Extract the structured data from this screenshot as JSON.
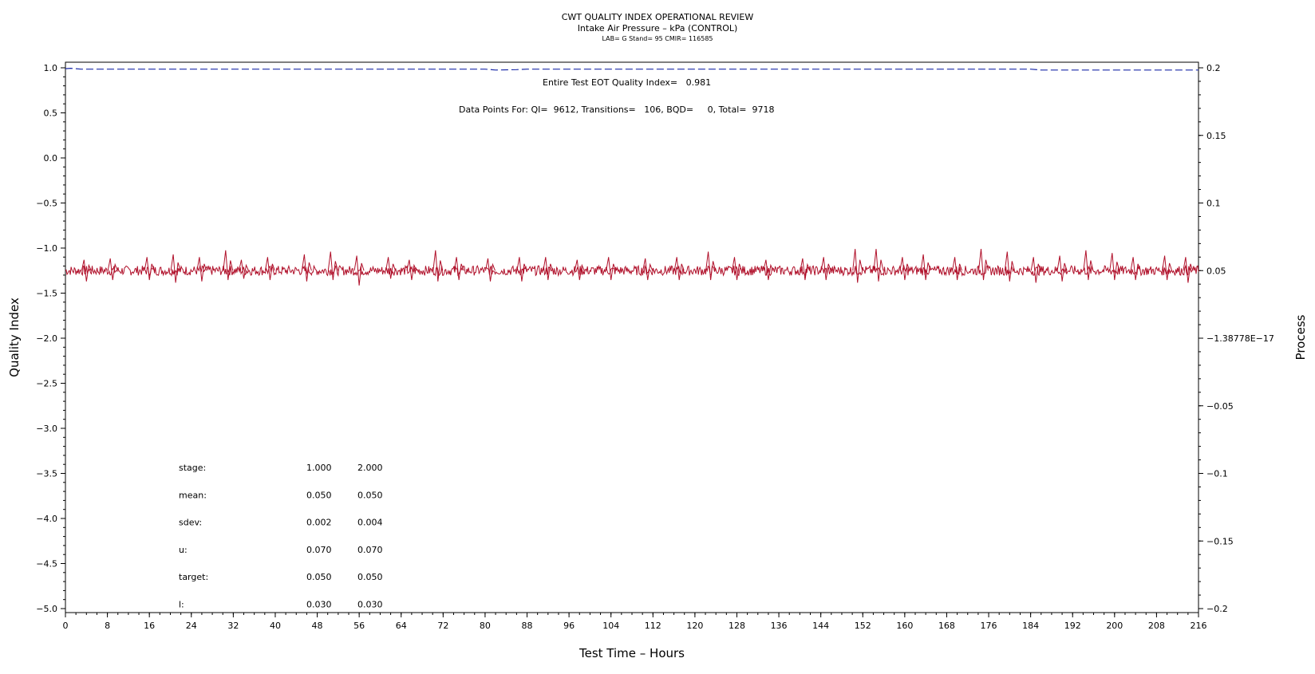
{
  "header": {
    "title": "CWT QUALITY INDEX OPERATIONAL REVIEW",
    "subtitle": "Intake Air Pressure – kPa (CONTROL)",
    "subsubtitle": "LAB= G Stand= 95 CMIR= 116585"
  },
  "annotations": {
    "eot": "Entire Test EOT Quality Index=   0.981",
    "datapoints": "Data Points For: QI=  9612, Transitions=   106, BQD=     0, Total=  9718"
  },
  "stats_table": {
    "rows": [
      {
        "label": "stage:",
        "v1": "1.000",
        "v2": "2.000"
      },
      {
        "label": "mean:",
        "v1": "0.050",
        "v2": "0.050"
      },
      {
        "label": "sdev:",
        "v1": "0.002",
        "v2": "0.004"
      },
      {
        "label": "u:",
        "v1": "0.070",
        "v2": "0.070"
      },
      {
        "label": "target:",
        "v1": "0.050",
        "v2": "0.050"
      },
      {
        "label": "l:",
        "v1": "0.030",
        "v2": "0.030"
      }
    ]
  },
  "chart_data": {
    "type": "line",
    "xlabel": "Test Time – Hours",
    "ylabel": "Quality Index",
    "y2label": "Process",
    "xlim": [
      0,
      216
    ],
    "ylim": [
      -5.0,
      1.0
    ],
    "y2lim": [
      -0.2,
      0.2
    ],
    "x_ticks": [
      0,
      8,
      16,
      24,
      32,
      40,
      48,
      56,
      64,
      72,
      80,
      88,
      96,
      104,
      112,
      120,
      128,
      136,
      144,
      152,
      160,
      168,
      176,
      184,
      192,
      200,
      208,
      216
    ],
    "y_ticks": [
      "1.0",
      "0.5",
      "0.0",
      "−0.5",
      "−1.0",
      "−1.5",
      "−2.0",
      "−2.5",
      "−3.0",
      "−3.5",
      "−4.0",
      "−4.5",
      "−5.0"
    ],
    "y_tick_values": [
      1.0,
      0.5,
      0.0,
      -0.5,
      -1.0,
      -1.5,
      -2.0,
      -2.5,
      -3.0,
      -3.5,
      -4.0,
      -4.5,
      -5.0
    ],
    "y2_ticks": [
      "0.2",
      "0.15",
      "0.1",
      "0.05",
      "−1.38778E−17",
      "−0.05",
      "−0.1",
      "−0.15",
      "−0.2"
    ],
    "y2_tick_values": [
      0.2,
      0.15,
      0.1,
      0.05,
      0.0,
      -0.05,
      -0.1,
      -0.15,
      -0.2
    ],
    "grid": false,
    "series": [
      {
        "axis": "left",
        "color": "#1a2aa8",
        "style": "dashed",
        "x": [
          0,
          1,
          3,
          20,
          80,
          82,
          86,
          88,
          120,
          184,
          186,
          216
        ],
        "values": [
          0.99,
          0.995,
          0.985,
          0.985,
          0.985,
          0.975,
          0.98,
          0.985,
          0.985,
          0.985,
          0.975,
          0.975
        ]
      },
      {
        "axis": "right",
        "color": "#b0102a",
        "style": "solid",
        "mean": 0.05,
        "sdev": 0.004,
        "spike_x": [
          4,
          9,
          16,
          21,
          26,
          31,
          34,
          39,
          46,
          51,
          56,
          62,
          66,
          71,
          75,
          81,
          87,
          92,
          98,
          104,
          111,
          117,
          123,
          128,
          134,
          141,
          145,
          151,
          155,
          160,
          164,
          170,
          175,
          180,
          185,
          190,
          195,
          200,
          204,
          210,
          214
        ],
        "spike_max": [
          0.058,
          0.059,
          0.06,
          0.062,
          0.06,
          0.065,
          0.058,
          0.06,
          0.062,
          0.064,
          0.061,
          0.06,
          0.058,
          0.065,
          0.06,
          0.059,
          0.06,
          0.06,
          0.058,
          0.06,
          0.059,
          0.06,
          0.064,
          0.06,
          0.058,
          0.059,
          0.06,
          0.066,
          0.066,
          0.06,
          0.062,
          0.06,
          0.066,
          0.064,
          0.06,
          0.061,
          0.065,
          0.063,
          0.06,
          0.061,
          0.06
        ],
        "spike_min": [
          0.042,
          0.043,
          0.043,
          0.041,
          0.042,
          0.043,
          0.044,
          0.043,
          0.042,
          0.043,
          0.039,
          0.044,
          0.043,
          0.042,
          0.043,
          0.042,
          0.042,
          0.043,
          0.043,
          0.043,
          0.043,
          0.043,
          0.043,
          0.043,
          0.043,
          0.043,
          0.043,
          0.041,
          0.042,
          0.043,
          0.043,
          0.043,
          0.043,
          0.042,
          0.041,
          0.042,
          0.043,
          0.043,
          0.043,
          0.043,
          0.041
        ]
      }
    ]
  }
}
